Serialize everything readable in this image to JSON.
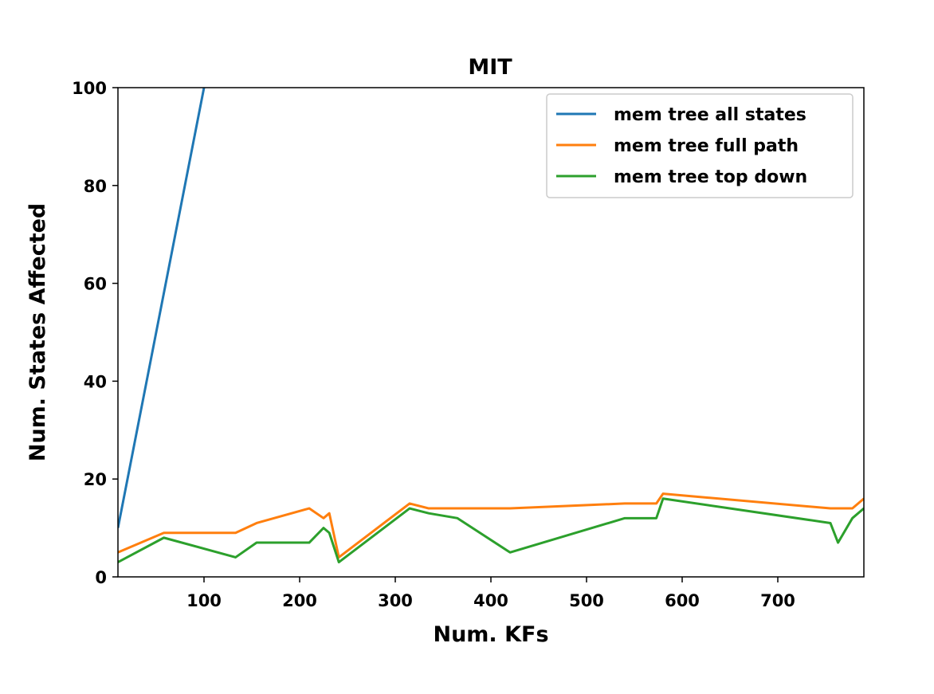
{
  "chart_data": {
    "type": "line",
    "title": "MIT",
    "xlabel": "Num. KFs",
    "ylabel": "Num. States Affected",
    "xlim": [
      10,
      790
    ],
    "ylim": [
      0,
      100
    ],
    "xticks": [
      100,
      200,
      300,
      400,
      500,
      600,
      700
    ],
    "yticks": [
      0,
      20,
      40,
      60,
      80,
      100
    ],
    "grid": false,
    "legend_position": "top-right",
    "series": [
      {
        "name": "mem tree all states",
        "color": "#1f77b4",
        "x": [
          10,
          100
        ],
        "y": [
          10,
          100
        ]
      },
      {
        "name": "mem tree full path",
        "color": "#ff7f0e",
        "x": [
          10,
          58,
          133,
          155,
          210,
          225,
          231,
          241,
          315,
          335,
          420,
          540,
          573,
          580,
          755,
          778,
          790
        ],
        "y": [
          5,
          9,
          9,
          11,
          14,
          12,
          13,
          4,
          15,
          14,
          14,
          15,
          15,
          17,
          14,
          14,
          16
        ]
      },
      {
        "name": "mem tree top down",
        "color": "#2ca02c",
        "x": [
          10,
          58,
          133,
          155,
          210,
          225,
          231,
          241,
          315,
          335,
          365,
          420,
          540,
          573,
          580,
          755,
          763,
          778,
          790
        ],
        "y": [
          3,
          8,
          4,
          7,
          7,
          10,
          9,
          3,
          14,
          13,
          12,
          5,
          12,
          12,
          16,
          11,
          7,
          12,
          14
        ]
      }
    ]
  }
}
